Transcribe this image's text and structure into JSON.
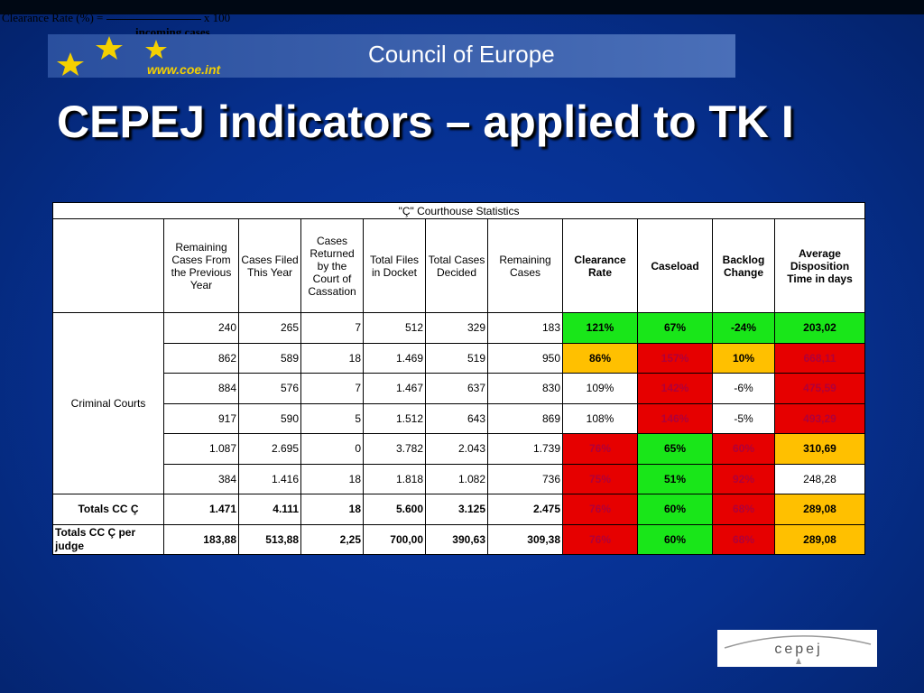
{
  "formula": {
    "left": "Clearance Rate (%) =",
    "right": "x 100",
    "denominator": "incoming cases"
  },
  "banner": {
    "site": "www.coe.int",
    "name": "Council of Europe"
  },
  "title": "CEPEJ indicators – applied to TK I",
  "table": {
    "title": "\"Ç\" Courthouse Statistics",
    "headers": [
      "Remaining Cases From the Previous Year",
      "Cases Filed This Year",
      "Cases Returned by the Court of Cassation",
      "Total Files in Docket",
      "Total Cases Decided",
      "Remaining Cases",
      "Clearance Rate",
      "Caseload",
      "Backlog Change",
      "Average Disposition Time in days"
    ],
    "group_label": "Criminal Courts",
    "rows": [
      {
        "cells": [
          "240",
          "265",
          "7",
          "512",
          "329",
          "183",
          "121%",
          "67%",
          "-24%",
          "203,02"
        ],
        "fills": [
          "#19e619",
          "#19e619",
          "#19e619",
          "#19e619"
        ]
      },
      {
        "cells": [
          "862",
          "589",
          "18",
          "1.469",
          "519",
          "950",
          "86%",
          "157%",
          "10%",
          "668,11"
        ],
        "fills": [
          "#ffc000",
          "#e60000",
          "#ffc000",
          "#e60000"
        ]
      },
      {
        "cells": [
          "884",
          "576",
          "7",
          "1.467",
          "637",
          "830",
          "109%",
          "142%",
          "-6%",
          "475,59"
        ],
        "fills": [
          null,
          "#e60000",
          null,
          "#e60000"
        ]
      },
      {
        "cells": [
          "917",
          "590",
          "5",
          "1.512",
          "643",
          "869",
          "108%",
          "146%",
          "-5%",
          "493,29"
        ],
        "fills": [
          null,
          "#e60000",
          null,
          "#e60000"
        ]
      },
      {
        "cells": [
          "1.087",
          "2.695",
          "0",
          "3.782",
          "2.043",
          "1.739",
          "76%",
          "65%",
          "60%",
          "310,69"
        ],
        "fills": [
          "#e60000",
          "#19e619",
          "#e60000",
          "#ffc000"
        ]
      },
      {
        "cells": [
          "384",
          "1.416",
          "18",
          "1.818",
          "1.082",
          "736",
          "75%",
          "51%",
          "92%",
          "248,28"
        ],
        "fills": [
          "#e60000",
          "#19e619",
          "#e60000",
          null
        ]
      }
    ],
    "totals": [
      {
        "label": "Totals CC Ç",
        "cells": [
          "1.471",
          "4.111",
          "18",
          "5.600",
          "3.125",
          "2.475",
          "76%",
          "60%",
          "68%",
          "289,08"
        ],
        "fills": [
          "#e60000",
          "#19e619",
          "#e60000",
          "#ffc000"
        ]
      },
      {
        "label": "Totals CC Ç per judge",
        "cells": [
          "183,88",
          "513,88",
          "2,25",
          "700,00",
          "390,63",
          "309,38",
          "76%",
          "60%",
          "68%",
          "289,08"
        ],
        "fills": [
          "#e60000",
          "#19e619",
          "#e60000",
          "#ffc000"
        ]
      }
    ]
  },
  "logo": "cepej"
}
